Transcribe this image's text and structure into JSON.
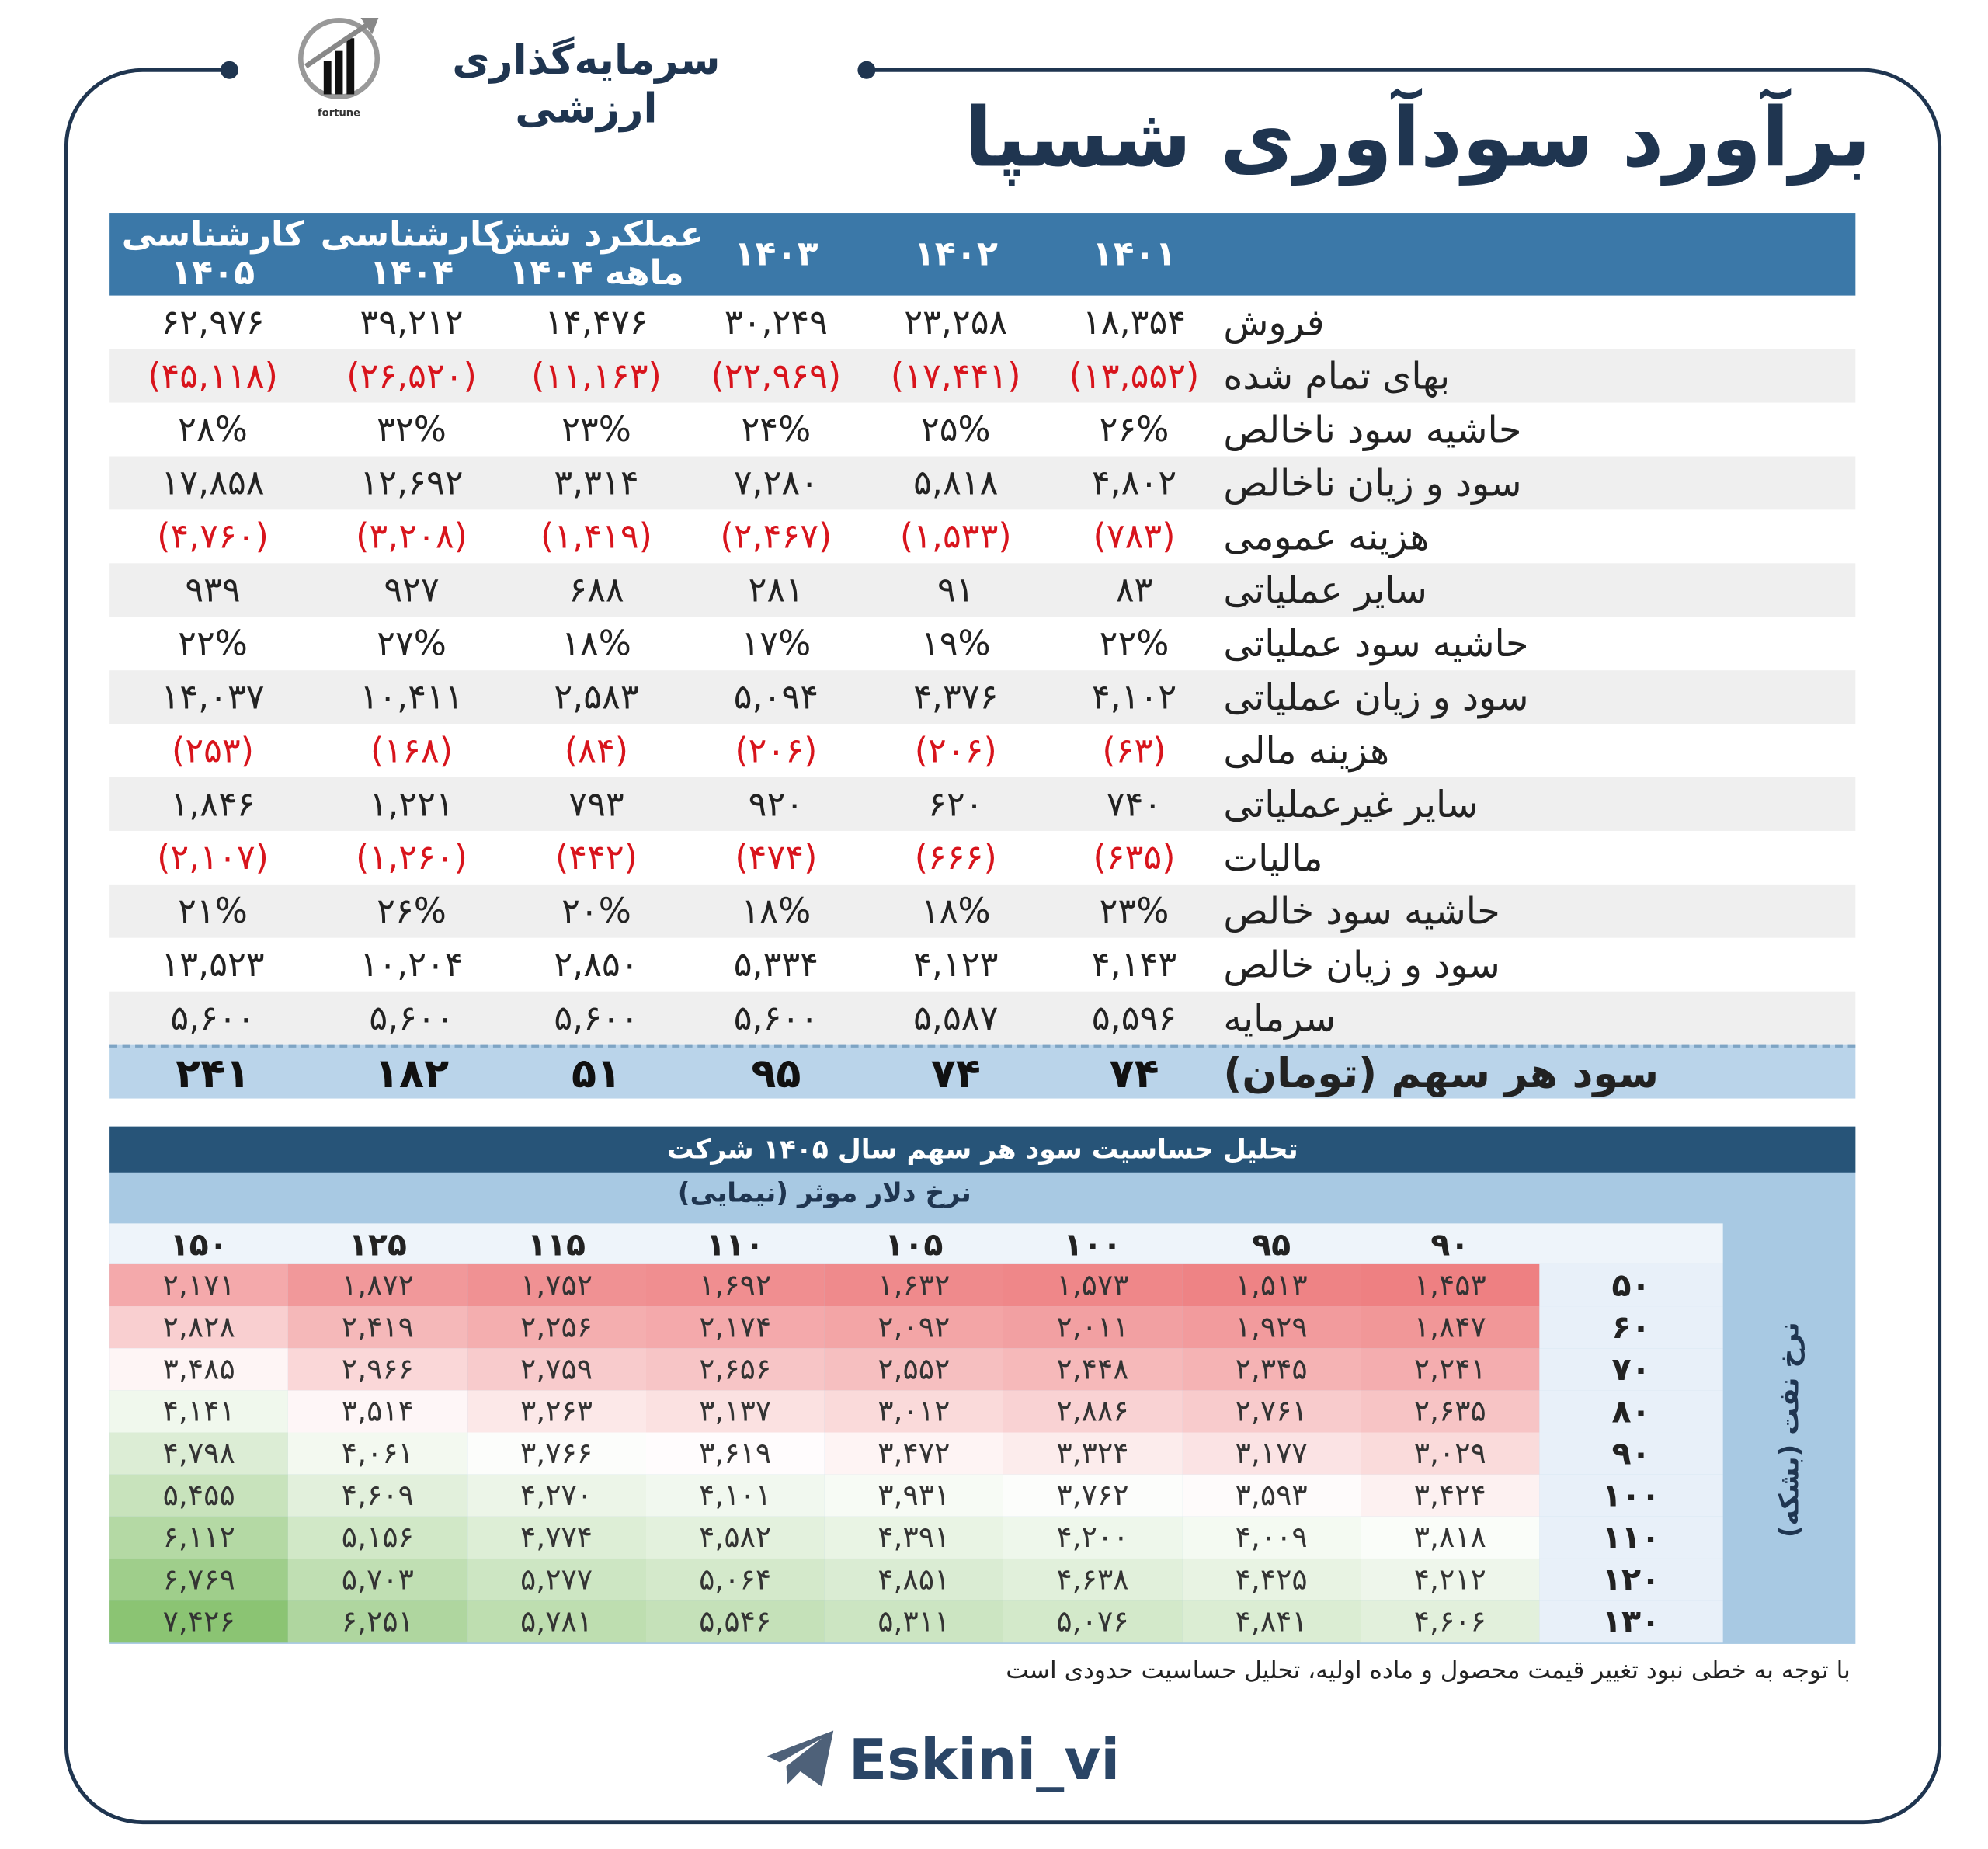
{
  "header": {
    "brand": "سرمایه‌گذاری ارزشی",
    "logo_text": "fortune",
    "title": "برآورد سودآوری شسپا"
  },
  "table": {
    "columns": [
      [
        "۱۴۰۱"
      ],
      [
        "۱۴۰۲"
      ],
      [
        "۱۴۰۳"
      ],
      [
        "عملکرد شش",
        "ماهه ۱۴۰۴"
      ],
      [
        "کارشناسی",
        "۱۴۰۴"
      ],
      [
        "کارشناسی",
        "۱۴۰۵"
      ]
    ],
    "rows": [
      {
        "label": "فروش",
        "values": [
          "۱۸,۳۵۴",
          "۲۳,۲۵۸",
          "۳۰,۲۴۹",
          "۱۴,۴۷۶",
          "۳۹,۲۱۲",
          "۶۲,۹۷۶"
        ]
      },
      {
        "label": "بهای تمام شده",
        "values": [
          "(۱۳,۵۵۲)",
          "(۱۷,۴۴۱)",
          "(۲۲,۹۶۹)",
          "(۱۱,۱۶۳)",
          "(۲۶,۵۲۰)",
          "(۴۵,۱۱۸)"
        ]
      },
      {
        "label": "حاشیه سود ناخالص",
        "values": [
          "۲۶%",
          "۲۵%",
          "۲۴%",
          "۲۳%",
          "۳۲%",
          "۲۸%"
        ]
      },
      {
        "label": "سود و زیان ناخالص",
        "values": [
          "۴,۸۰۲",
          "۵,۸۱۸",
          "۷,۲۸۰",
          "۳,۳۱۴",
          "۱۲,۶۹۲",
          "۱۷,۸۵۸"
        ]
      },
      {
        "label": "هزینه عمومی",
        "values": [
          "(۷۸۳)",
          "(۱,۵۳۳)",
          "(۲,۴۶۷)",
          "(۱,۴۱۹)",
          "(۳,۲۰۸)",
          "(۴,۷۶۰)"
        ]
      },
      {
        "label": "سایر  عملیاتی",
        "values": [
          "۸۳",
          "۹۱",
          "۲۸۱",
          "۶۸۸",
          "۹۲۷",
          "۹۳۹"
        ]
      },
      {
        "label": "حاشیه سود عملیاتی",
        "values": [
          "۲۲%",
          "۱۹%",
          "۱۷%",
          "۱۸%",
          "۲۷%",
          "۲۲%"
        ]
      },
      {
        "label": "سود و زیان عملیاتی",
        "values": [
          "۴,۱۰۲",
          "۴,۳۷۶",
          "۵,۰۹۴",
          "۲,۵۸۳",
          "۱۰,۴۱۱",
          "۱۴,۰۳۷"
        ]
      },
      {
        "label": "هزینه مالی",
        "values": [
          "(۶۳)",
          "(۲۰۶)",
          "(۲۰۶)",
          "(۸۴)",
          "(۱۶۸)",
          "(۲۵۳)"
        ]
      },
      {
        "label": "سایر غیرعملیاتی",
        "values": [
          "۷۴۰",
          "۶۲۰",
          "۹۲۰",
          "۷۹۳",
          "۱,۲۲۱",
          "۱,۸۴۶"
        ]
      },
      {
        "label": "مالیات",
        "values": [
          "(۶۳۵)",
          "(۶۶۶)",
          "(۴۷۴)",
          "(۴۴۲)",
          "(۱,۲۶۰)",
          "(۲,۱۰۷)"
        ]
      },
      {
        "label": "حاشیه سود خالص",
        "values": [
          "۲۳%",
          "۱۸%",
          "۱۸%",
          "۲۰%",
          "۲۶%",
          "۲۱%"
        ]
      },
      {
        "label": "سود و زیان خالص",
        "values": [
          "۴,۱۴۳",
          "۴,۱۲۳",
          "۵,۳۳۴",
          "۲,۸۵۰",
          "۱۰,۲۰۴",
          "۱۳,۵۲۳"
        ]
      },
      {
        "label": "سرمایه",
        "values": [
          "۵,۵۹۶",
          "۵,۵۸۷",
          "۵,۶۰۰",
          "۵,۶۰۰",
          "۵,۶۰۰",
          "۵,۶۰۰"
        ]
      }
    ],
    "eps": {
      "label": "سود هر سهم (تومان)",
      "values": [
        "۷۴",
        "۷۴",
        "۹۵",
        "۵۱",
        "۱۸۲",
        "۲۴۱"
      ]
    }
  },
  "sensitivity": {
    "title": "تحلیل حساسیت سود هر سهم سال ۱۴۰۵  شرکت",
    "x_label": "نرخ دلار موثر (نیمایی)",
    "y_label": "نرخ نفت (بشکه)",
    "x_values": [
      "۹۰",
      "۹۵",
      "۱۰۰",
      "۱۰۵",
      "۱۱۰",
      "۱۱۵",
      "۱۲۵",
      "۱۵۰"
    ],
    "rows": [
      {
        "oil": "۵۰",
        "values": [
          "۱,۴۵۳",
          "۱,۵۱۳",
          "۱,۵۷۳",
          "۱,۶۳۲",
          "۱,۶۹۲",
          "۱,۷۵۲",
          "۱,۸۷۲",
          "۲,۱۷۱"
        ]
      },
      {
        "oil": "۶۰",
        "values": [
          "۱,۸۴۷",
          "۱,۹۲۹",
          "۲,۰۱۱",
          "۲,۰۹۲",
          "۲,۱۷۴",
          "۲,۲۵۶",
          "۲,۴۱۹",
          "۲,۸۲۸"
        ]
      },
      {
        "oil": "۷۰",
        "values": [
          "۲,۲۴۱",
          "۲,۳۴۵",
          "۲,۴۴۸",
          "۲,۵۵۲",
          "۲,۶۵۶",
          "۲,۷۵۹",
          "۲,۹۶۶",
          "۳,۴۸۵"
        ]
      },
      {
        "oil": "۸۰",
        "values": [
          "۲,۶۳۵",
          "۲,۷۶۱",
          "۲,۸۸۶",
          "۳,۰۱۲",
          "۳,۱۳۷",
          "۳,۲۶۳",
          "۳,۵۱۴",
          "۴,۱۴۱"
        ]
      },
      {
        "oil": "۹۰",
        "values": [
          "۳,۰۲۹",
          "۳,۱۷۷",
          "۳,۳۲۴",
          "۳,۴۷۲",
          "۳,۶۱۹",
          "۳,۷۶۶",
          "۴,۰۶۱",
          "۴,۷۹۸"
        ]
      },
      {
        "oil": "۱۰۰",
        "values": [
          "۳,۴۲۴",
          "۳,۵۹۳",
          "۳,۷۶۲",
          "۳,۹۳۱",
          "۴,۱۰۱",
          "۴,۲۷۰",
          "۴,۶۰۹",
          "۵,۴۵۵"
        ]
      },
      {
        "oil": "۱۱۰",
        "values": [
          "۳,۸۱۸",
          "۴,۰۰۹",
          "۴,۲۰۰",
          "۴,۳۹۱",
          "۴,۵۸۲",
          "۴,۷۷۴",
          "۵,۱۵۶",
          "۶,۱۱۲"
        ]
      },
      {
        "oil": "۱۲۰",
        "values": [
          "۴,۲۱۲",
          "۴,۴۲۵",
          "۴,۶۳۸",
          "۴,۸۵۱",
          "۵,۰۶۴",
          "۵,۲۷۷",
          "۵,۷۰۳",
          "۶,۷۶۹"
        ]
      },
      {
        "oil": "۱۳۰",
        "values": [
          "۴,۶۰۶",
          "۴,۸۴۱",
          "۵,۰۷۶",
          "۵,۳۱۱",
          "۵,۵۴۶",
          "۵,۷۸۱",
          "۶,۲۵۱",
          "۷,۴۲۶"
        ]
      }
    ]
  },
  "note": "با توجه به خطی نبود تغییر قیمت محصول و ماده اولیه، تحلیل حساسیت حدودی است",
  "footer": "Eskini_vi"
}
